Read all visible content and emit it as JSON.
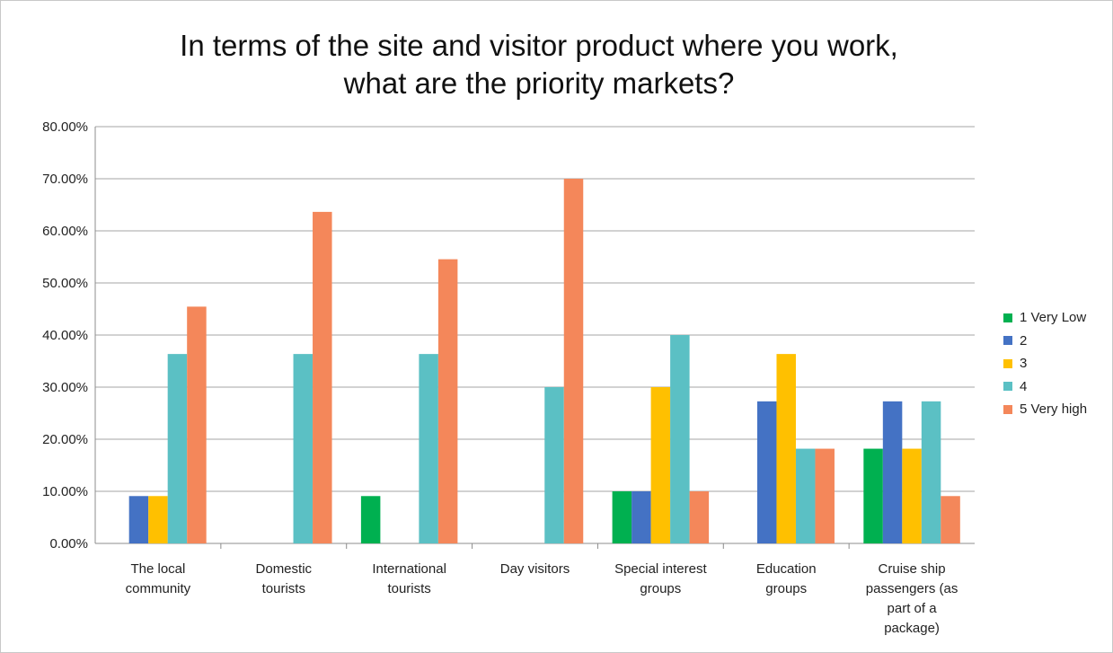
{
  "chart_data": {
    "type": "bar",
    "title_lines": [
      "In terms of the site and visitor product where you work,",
      "what are the priority markets?"
    ],
    "categories": [
      [
        "The local",
        "community"
      ],
      [
        "Domestic",
        "tourists"
      ],
      [
        "International",
        "tourists"
      ],
      [
        "Day visitors"
      ],
      [
        "Special interest",
        "groups"
      ],
      [
        "Education",
        "groups"
      ],
      [
        "Cruise ship",
        "passengers (as",
        "part of a",
        "package)"
      ]
    ],
    "series": [
      {
        "name": "1 Very Low",
        "color": "#00b050",
        "values": [
          0,
          0,
          9.09,
          0,
          10.0,
          0,
          18.18
        ]
      },
      {
        "name": "2",
        "color": "#4472c4",
        "values": [
          9.09,
          0,
          0,
          0,
          10.0,
          27.27,
          27.27
        ]
      },
      {
        "name": "3",
        "color": "#ffc000",
        "values": [
          9.09,
          0,
          0,
          0,
          30.0,
          36.36,
          18.18
        ]
      },
      {
        "name": "4",
        "color": "#5bc0c4",
        "values": [
          36.36,
          36.36,
          36.36,
          30.0,
          40.0,
          18.18,
          27.27
        ]
      },
      {
        "name": "5 Very high",
        "color": "#f4875a",
        "values": [
          45.45,
          63.64,
          54.55,
          70.0,
          10.0,
          18.18,
          9.09
        ]
      }
    ],
    "y_ticks": [
      "0.00%",
      "10.00%",
      "20.00%",
      "30.00%",
      "40.00%",
      "50.00%",
      "60.00%",
      "70.00%",
      "80.00%"
    ],
    "ylim": [
      0,
      80
    ],
    "grid": true,
    "legend_position": "right"
  }
}
